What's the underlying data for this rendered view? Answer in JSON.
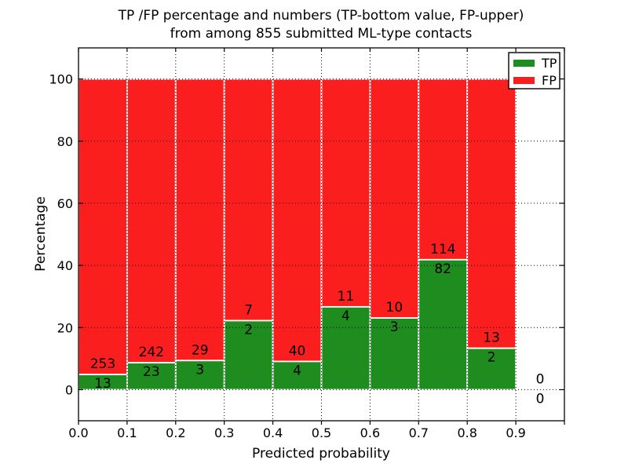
{
  "title": {
    "line1": "TP /FP percentage and numbers (TP-bottom value, FP-upper)",
    "line2": "from among 855 submitted ML-type contacts"
  },
  "chart_data": {
    "type": "bar",
    "subtype": "stacked-percentage-histogram",
    "title": "TP /FP percentage and numbers (TP-bottom value, FP-upper)\nfrom among 855 submitted ML-type contacts",
    "total_contacts": 855,
    "xlabel": "Predicted probability",
    "ylabel": "Percentage",
    "bin_starts": [
      0.0,
      0.1,
      0.2,
      0.3,
      0.4,
      0.5,
      0.6,
      0.7,
      0.8,
      0.9
    ],
    "bin_width": 0.1,
    "series": [
      {
        "name": "TP",
        "color": "#1e8c1e",
        "counts": [
          13,
          23,
          3,
          2,
          4,
          4,
          3,
          82,
          2,
          0
        ]
      },
      {
        "name": "FP",
        "color": "#fa1e1e",
        "counts": [
          253,
          242,
          29,
          7,
          40,
          11,
          10,
          114,
          13,
          0
        ]
      }
    ],
    "tp_percent": [
      4.887,
      8.679,
      9.375,
      22.222,
      9.091,
      26.667,
      23.077,
      41.837,
      13.333,
      0.0
    ],
    "bar_total_percent": 100,
    "xticks": [
      0.0,
      0.1,
      0.2,
      0.3,
      0.4,
      0.5,
      0.6,
      0.7,
      0.8,
      0.9
    ],
    "yticks": [
      0,
      20,
      40,
      60,
      80,
      100
    ],
    "xlim": [
      0.0,
      1.0
    ],
    "ylim": [
      -10,
      110
    ],
    "grid": true,
    "grid_style": "dotted",
    "bar_edge_color": "#ffffff",
    "legend": {
      "position": "upper right",
      "entries": [
        {
          "label": "TP",
          "color": "#1e8c1e"
        },
        {
          "label": "FP",
          "color": "#fa1e1e"
        }
      ]
    }
  }
}
